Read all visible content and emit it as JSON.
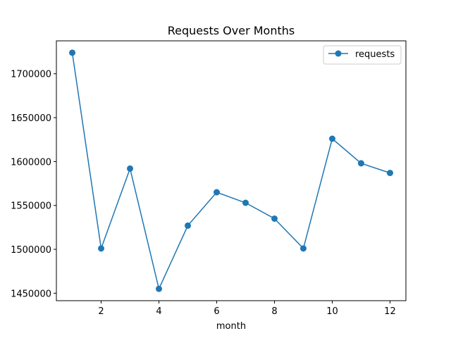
{
  "chart_data": {
    "type": "line",
    "title": "Requests Over Months",
    "xlabel": "month",
    "ylabel": "",
    "x": [
      1,
      2,
      3,
      4,
      5,
      6,
      7,
      8,
      9,
      10,
      11,
      12
    ],
    "series": [
      {
        "name": "requests",
        "values": [
          1724000,
          1501000,
          1592000,
          1455000,
          1527000,
          1565000,
          1553000,
          1535000,
          1501000,
          1626000,
          1598000,
          1587000
        ]
      }
    ],
    "xlim": [
      0.45,
      12.55
    ],
    "ylim": [
      1441500,
      1737500
    ],
    "xticks": [
      2,
      4,
      6,
      8,
      10,
      12
    ],
    "yticks": [
      1450000,
      1500000,
      1550000,
      1600000,
      1650000,
      1700000
    ],
    "xtick_labels": [
      "2",
      "4",
      "6",
      "8",
      "10",
      "12"
    ],
    "ytick_labels": [
      "1450000",
      "1500000",
      "1550000",
      "1600000",
      "1650000",
      "1700000"
    ],
    "grid": false,
    "legend_position": "top-right",
    "marker": "circle",
    "line_color": "#1f77b4"
  }
}
